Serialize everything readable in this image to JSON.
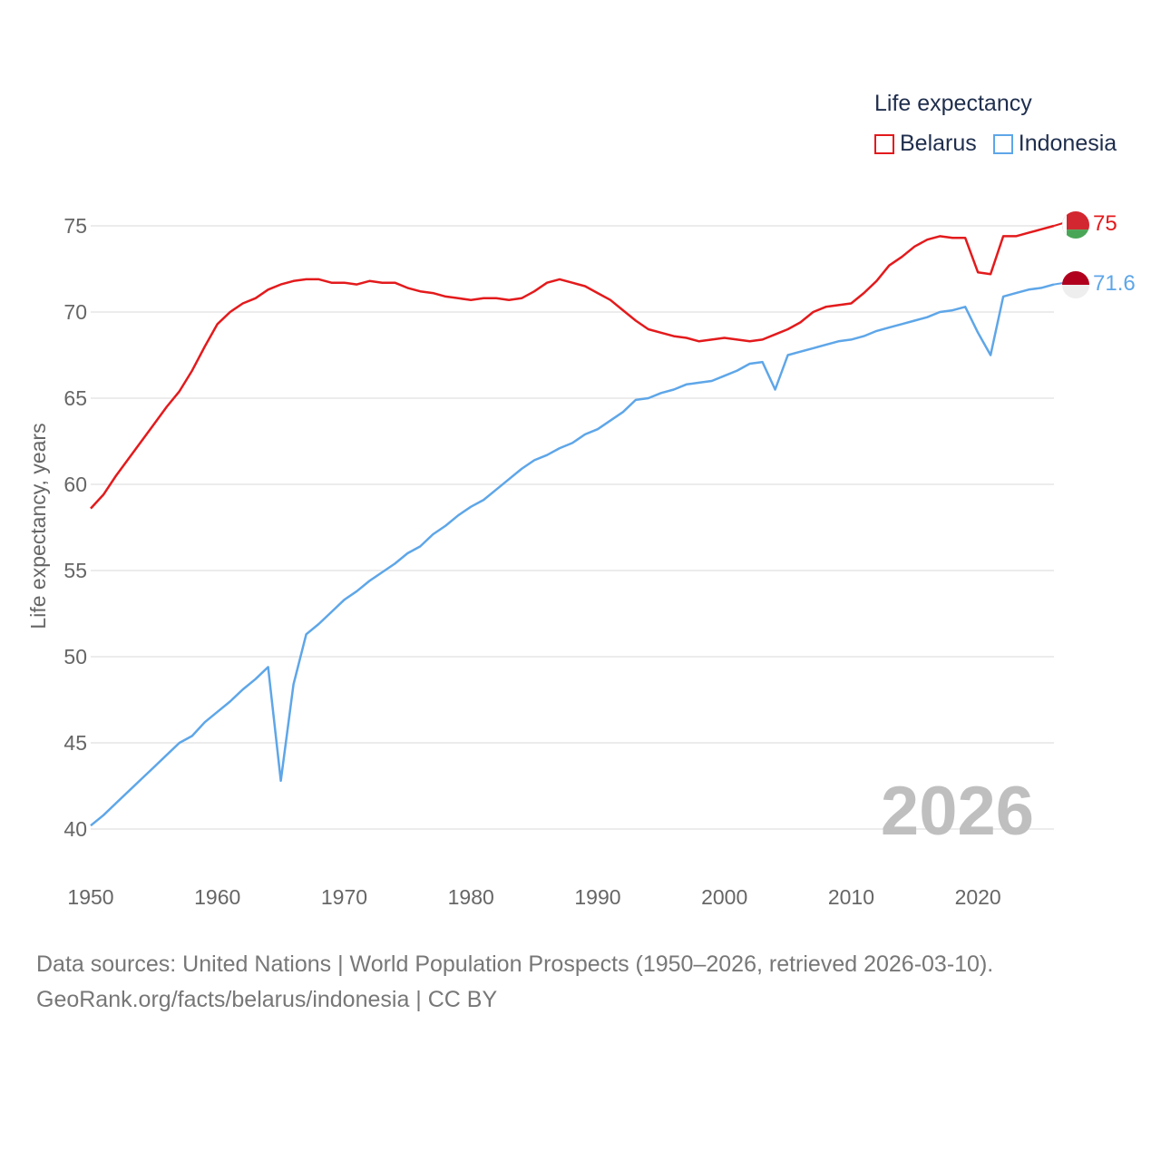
{
  "legend": {
    "title": "Life expectancy",
    "items": [
      {
        "label": "Belarus",
        "color": "#e31a1c"
      },
      {
        "label": "Indonesia",
        "color": "#5ea6e8"
      }
    ]
  },
  "footer": {
    "line1": "Data sources: United Nations | World Population Prospects (1950–2026, retrieved 2026-03-10).",
    "line2": "GeoRank.org/facts/belarus/indonesia | CC BY"
  },
  "chart_data": {
    "type": "line",
    "title": "Life expectancy",
    "xlabel": "",
    "ylabel": "Life expectancy, years",
    "xlim": [
      1950,
      2026
    ],
    "ylim": [
      40,
      75
    ],
    "x_ticks": [
      1950,
      1960,
      1970,
      1980,
      1990,
      2000,
      2010,
      2020
    ],
    "y_ticks": [
      40,
      45,
      50,
      55,
      60,
      65,
      70,
      75
    ],
    "grid": true,
    "legend_position": "top-right",
    "year_label": "2026",
    "x": [
      1950,
      1951,
      1952,
      1953,
      1954,
      1955,
      1956,
      1957,
      1958,
      1959,
      1960,
      1961,
      1962,
      1963,
      1964,
      1965,
      1966,
      1967,
      1968,
      1969,
      1970,
      1971,
      1972,
      1973,
      1974,
      1975,
      1976,
      1977,
      1978,
      1979,
      1980,
      1981,
      1982,
      1983,
      1984,
      1985,
      1986,
      1987,
      1988,
      1989,
      1990,
      1991,
      1992,
      1993,
      1994,
      1995,
      1996,
      1997,
      1998,
      1999,
      2000,
      2001,
      2002,
      2003,
      2004,
      2005,
      2006,
      2007,
      2008,
      2009,
      2010,
      2011,
      2012,
      2013,
      2014,
      2015,
      2016,
      2017,
      2018,
      2019,
      2020,
      2021,
      2022,
      2023,
      2024,
      2025,
      2026
    ],
    "series": [
      {
        "name": "Belarus",
        "color": "#e31a1c",
        "end_label": "75",
        "values": [
          58.6,
          59.4,
          60.5,
          61.5,
          62.5,
          63.5,
          64.5,
          65.4,
          66.6,
          68.0,
          69.3,
          70.0,
          70.5,
          70.8,
          71.3,
          71.6,
          71.8,
          71.9,
          71.9,
          71.7,
          71.7,
          71.6,
          71.8,
          71.7,
          71.7,
          71.4,
          71.2,
          71.1,
          70.9,
          70.8,
          70.7,
          70.8,
          70.8,
          70.7,
          70.8,
          71.2,
          71.7,
          71.9,
          71.7,
          71.5,
          71.1,
          70.7,
          70.1,
          69.5,
          69.0,
          68.8,
          68.6,
          68.5,
          68.3,
          68.4,
          68.5,
          68.4,
          68.3,
          68.4,
          68.7,
          69.0,
          69.4,
          70.0,
          70.3,
          70.4,
          70.5,
          71.1,
          71.8,
          72.7,
          73.2,
          73.8,
          74.2,
          74.4,
          74.3,
          74.3,
          72.3,
          72.2,
          74.4,
          74.4,
          74.6,
          74.8,
          75.0
        ]
      },
      {
        "name": "Indonesia",
        "color": "#5ea6e8",
        "end_label": "71.6",
        "values": [
          40.2,
          40.8,
          41.5,
          42.2,
          42.9,
          43.6,
          44.3,
          45.0,
          45.4,
          46.2,
          46.8,
          47.4,
          48.1,
          48.7,
          49.4,
          42.8,
          48.4,
          51.3,
          51.9,
          52.6,
          53.3,
          53.8,
          54.4,
          54.9,
          55.4,
          56.0,
          56.4,
          57.1,
          57.6,
          58.2,
          58.7,
          59.1,
          59.7,
          60.3,
          60.9,
          61.4,
          61.7,
          62.1,
          62.4,
          62.9,
          63.2,
          63.7,
          64.2,
          64.9,
          65.0,
          65.3,
          65.5,
          65.8,
          65.9,
          66.0,
          66.3,
          66.6,
          67.0,
          67.1,
          65.5,
          67.5,
          67.7,
          67.9,
          68.1,
          68.3,
          68.4,
          68.6,
          68.9,
          69.1,
          69.3,
          69.5,
          69.7,
          70.0,
          70.1,
          70.3,
          68.8,
          67.5,
          70.9,
          71.1,
          71.3,
          71.4,
          71.6
        ]
      }
    ]
  }
}
